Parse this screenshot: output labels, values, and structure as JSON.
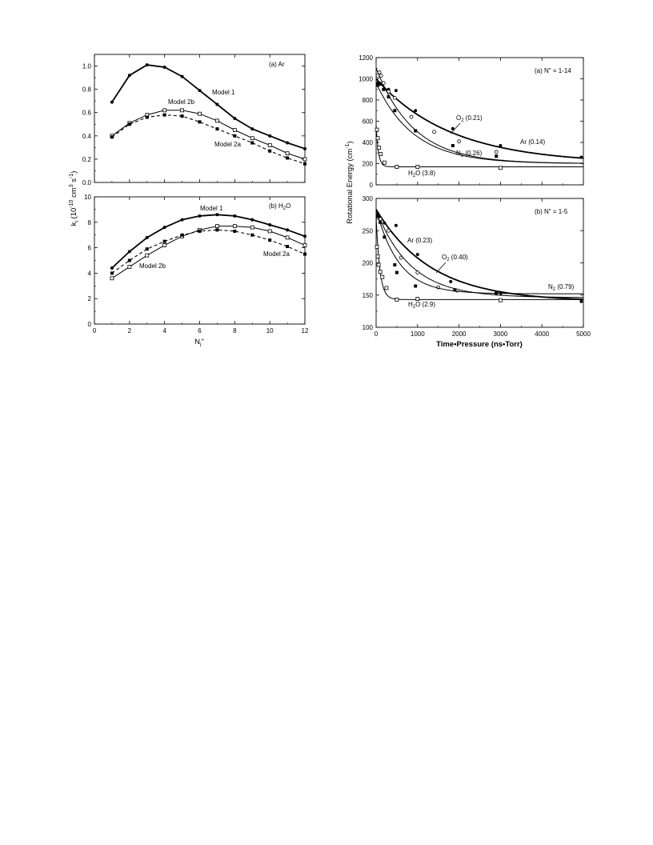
{
  "chart_data": [
    {
      "type": "line",
      "panel_label": "(a)  Ar",
      "xlabel": "",
      "ylabel": "k_i (10^-10 cm^3 s^-1)",
      "xlim": [
        0,
        12
      ],
      "ylim": [
        0,
        1.1
      ],
      "x_ticks": [
        0,
        2,
        4,
        6,
        8,
        10,
        12
      ],
      "y_ticks": [
        0.0,
        0.2,
        0.4,
        0.6,
        0.8,
        1.0
      ],
      "x": [
        1,
        2,
        3,
        4,
        5,
        6,
        7,
        8,
        9,
        10,
        11,
        12
      ],
      "series": [
        {
          "name": "Model 1",
          "marker": "filled-circle",
          "line": "bold-solid",
          "values": [
            0.69,
            0.92,
            1.01,
            0.99,
            0.91,
            0.79,
            0.67,
            0.55,
            0.46,
            0.4,
            0.34,
            0.29
          ]
        },
        {
          "name": "Model 2b",
          "marker": "open-square",
          "line": "thin-solid",
          "values": [
            0.4,
            0.51,
            0.58,
            0.62,
            0.62,
            0.59,
            0.53,
            0.45,
            0.38,
            0.32,
            0.25,
            0.2
          ]
        },
        {
          "name": "Model 2a",
          "marker": "filled-square",
          "line": "dashed",
          "values": [
            0.39,
            0.5,
            0.56,
            0.58,
            0.57,
            0.52,
            0.46,
            0.4,
            0.34,
            0.27,
            0.21,
            0.16
          ]
        }
      ],
      "legend": "inline labels"
    },
    {
      "type": "line",
      "panel_label": "(b)  H2O",
      "xlabel": "N_i\"",
      "ylabel": "k_i (10^-10 cm^3 s^-1)",
      "xlim": [
        0,
        12
      ],
      "ylim": [
        0,
        10
      ],
      "x_ticks": [
        0,
        2,
        4,
        6,
        8,
        10,
        12
      ],
      "y_ticks": [
        0,
        2,
        4,
        6,
        8,
        10
      ],
      "x": [
        1,
        2,
        3,
        4,
        5,
        6,
        7,
        8,
        9,
        10,
        11,
        12
      ],
      "series": [
        {
          "name": "Model 1",
          "marker": "filled-circle",
          "line": "bold-solid",
          "values": [
            4.4,
            5.7,
            6.8,
            7.6,
            8.2,
            8.5,
            8.6,
            8.5,
            8.2,
            7.8,
            7.4,
            6.9
          ]
        },
        {
          "name": "Model 2b",
          "marker": "open-square",
          "line": "thin-solid",
          "values": [
            3.6,
            4.5,
            5.4,
            6.2,
            6.9,
            7.4,
            7.7,
            7.7,
            7.6,
            7.3,
            6.8,
            6.2
          ]
        },
        {
          "name": "Model 2a",
          "marker": "filled-square",
          "line": "dashed",
          "values": [
            4.0,
            5.0,
            5.9,
            6.5,
            7.0,
            7.3,
            7.4,
            7.3,
            7.0,
            6.6,
            6.1,
            5.5
          ]
        }
      ],
      "legend": "inline labels"
    },
    {
      "type": "scatter",
      "panel_label": "(a)  N\" = 1-14",
      "xlabel": "",
      "ylabel": "Rotational Energy (cm^-1)",
      "xlim": [
        0,
        5000
      ],
      "ylim": [
        0,
        1200
      ],
      "x_ticks": [
        0,
        1000,
        2000,
        3000,
        4000,
        5000
      ],
      "y_ticks": [
        0,
        200,
        400,
        600,
        800,
        1000,
        1200
      ],
      "series": [
        {
          "name": "Ar (0.14)",
          "marker": "filled-circle",
          "line": "bold",
          "fit": {
            "e0": 1000,
            "einf": 200,
            "k": 0.00055
          },
          "points": [
            [
              40,
              960
            ],
            [
              80,
              960
            ],
            [
              180,
              960
            ],
            [
              300,
              900
            ],
            [
              480,
              890
            ],
            [
              950,
              700
            ],
            [
              1850,
              530
            ],
            [
              3000,
              370
            ],
            [
              4950,
              260
            ]
          ]
        },
        {
          "name": "O2 (0.21)",
          "marker": "open-circle",
          "line": "thin",
          "fit": {
            "e0": 1100,
            "einf": 200,
            "k": 0.0011
          },
          "points": [
            [
              40,
              1030
            ],
            [
              80,
              1060
            ],
            [
              120,
              1030
            ],
            [
              180,
              960
            ],
            [
              300,
              880
            ],
            [
              450,
              820
            ],
            [
              850,
              640
            ],
            [
              1400,
              500
            ],
            [
              2000,
              410
            ],
            [
              2900,
              310
            ]
          ]
        },
        {
          "name": "N2 (0.26)",
          "marker": "filled-square",
          "line": "thin",
          "fit": {
            "e0": 960,
            "einf": 200,
            "k": 0.0011
          },
          "points": [
            [
              40,
              940
            ],
            [
              100,
              950
            ],
            [
              180,
              900
            ],
            [
              300,
              830
            ],
            [
              450,
              700
            ],
            [
              950,
              510
            ],
            [
              1850,
              370
            ],
            [
              2900,
              270
            ]
          ]
        },
        {
          "name": "H2O (3.8)",
          "marker": "open-square",
          "line": "thin",
          "fit": {
            "e0": 560,
            "einf": 170,
            "k": 0.018
          },
          "points": [
            [
              20,
              520
            ],
            [
              40,
              440
            ],
            [
              70,
              350
            ],
            [
              110,
              290
            ],
            [
              200,
              210
            ],
            [
              500,
              170
            ],
            [
              1000,
              170
            ],
            [
              3000,
              160
            ]
          ]
        }
      ],
      "legend": "inline labels"
    },
    {
      "type": "scatter",
      "panel_label": "(b)  N\" = 1-5",
      "xlabel": "Time•Pressure (ns•Torr)",
      "ylabel": "Rotational Energy (cm^-1)",
      "xlim": [
        0,
        5000
      ],
      "ylim": [
        100,
        300
      ],
      "x_ticks": [
        0,
        1000,
        2000,
        3000,
        4000,
        5000
      ],
      "y_ticks": [
        100,
        150,
        200,
        250,
        300
      ],
      "series": [
        {
          "name": "Ar (0.23)",
          "marker": "filled-circle",
          "line": "bold",
          "fit": {
            "e0": 283,
            "einf": 140,
            "k": 0.00075
          },
          "points": [
            [
              40,
              275
            ],
            [
              100,
              270
            ],
            [
              200,
              262
            ],
            [
              480,
              258
            ],
            [
              1000,
              213
            ],
            [
              1800,
              171
            ],
            [
              3000,
              152
            ],
            [
              4950,
              140
            ]
          ]
        },
        {
          "name": "O2 (0.40)",
          "marker": "open-circle",
          "line": "thin",
          "fit": {
            "e0": 282,
            "einf": 146,
            "k": 0.0012
          },
          "points": [
            [
              40,
              270
            ],
            [
              100,
              268
            ],
            [
              300,
              250
            ],
            [
              600,
              208
            ],
            [
              1000,
              185
            ],
            [
              1500,
              162
            ],
            [
              1950,
              157
            ],
            [
              2950,
              152
            ]
          ]
        },
        {
          "name": "N2 (0.79)",
          "marker": "filled-square",
          "line": "thin",
          "fit": {
            "e0": 283,
            "einf": 152,
            "k": 0.0018
          },
          "points": [
            [
              40,
              272
            ],
            [
              100,
              263
            ],
            [
              200,
              240
            ],
            [
              450,
              197
            ],
            [
              500,
              185
            ],
            [
              950,
              164
            ],
            [
              1900,
              158
            ],
            [
              2900,
              153
            ]
          ]
        },
        {
          "name": "H2O (2.9)",
          "marker": "open-square",
          "line": "thin",
          "fit": {
            "e0": 270,
            "einf": 143,
            "k": 0.011
          },
          "points": [
            [
              20,
              225
            ],
            [
              40,
              210
            ],
            [
              60,
              197
            ],
            [
              100,
              186
            ],
            [
              150,
              178
            ],
            [
              250,
              161
            ],
            [
              500,
              143
            ],
            [
              1000,
              144
            ],
            [
              3000,
              142
            ]
          ]
        }
      ],
      "legend": "inline labels"
    }
  ],
  "labels": {
    "left_a_panel": "(a)  Ar",
    "left_b_panel_pre": "(b)  H",
    "left_b_panel_post": "O",
    "left_ylabel": "k",
    "left_ylabel_sub": "i",
    "left_ylabel_rest": " (10",
    "left_ylabel_exp1": "-10",
    "left_ylabel_mid": " cm",
    "left_ylabel_exp2": "3",
    "left_ylabel_s": " s",
    "left_ylabel_exp3": "-1",
    "left_ylabel_close": ")",
    "left_xlabel_main": "N",
    "left_xlabel_sub": "i",
    "left_xlabel_dq": "\"",
    "model1_a": "Model 1",
    "model2b_a": "Model 2b",
    "model2a_a": "Model 2a",
    "model1_b": "Model 1",
    "model2b_b": "Model 2b",
    "model2a_b": "Model 2a",
    "right_a_panel": "(a)  N\" = 1-14",
    "right_b_panel": "(b)  N\" = 1-5",
    "right_ylabel_pre": "Rotational Energy (cm",
    "right_ylabel_exp": "-1",
    "right_ylabel_post": ")",
    "right_xlabel": "Time•Pressure (ns•Torr)",
    "ann_o2_a_pre": "O",
    "ann_o2_a_sub": "2",
    "ann_o2_a_post": " (0.21)",
    "ann_ar_a": "Ar (0.14)",
    "ann_n2_a_pre": "N",
    "ann_n2_a_sub": "2",
    "ann_n2_a_post": " (0.26)",
    "ann_h2o_a_pre": "H",
    "ann_h2o_a_sub": "2",
    "ann_h2o_a_post": "O (3.8)",
    "ann_ar_b": "Ar (0.23)",
    "ann_o2_b_pre": "O",
    "ann_o2_b_sub": "2",
    "ann_o2_b_post": " (0.40)",
    "ann_n2_b_pre": "N",
    "ann_n2_b_sub": "2",
    "ann_n2_b_post": " (0.79)",
    "ann_h2o_b_pre": "H",
    "ann_h2o_b_sub": "2",
    "ann_h2o_b_post": "O (2.9)"
  }
}
